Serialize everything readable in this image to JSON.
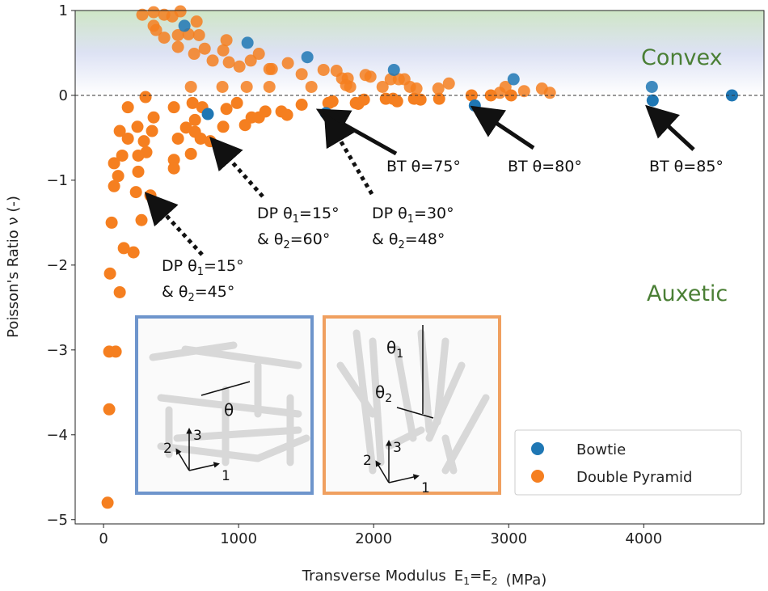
{
  "chart_data": {
    "type": "scatter",
    "title": "",
    "xlabel": "Transverse Modulus",
    "xlabel_eq": "E1=E2",
    "xlabel_unit": "(MPa)",
    "ylabel": "Poisson's Ratio ν (-)",
    "xlim": [
      -210,
      4890
    ],
    "ylim": [
      -5.05,
      1.0
    ],
    "xticks": [
      0,
      1000,
      2000,
      3000,
      4000
    ],
    "yticks": [
      1,
      0,
      -1,
      -2,
      -3,
      -4,
      -5
    ],
    "ytick_labels": [
      "1",
      "0",
      "−1",
      "−2",
      "−3",
      "−4",
      "−5"
    ],
    "grid": false,
    "zero_line": "dashed",
    "legend_position": "bottom-right",
    "regions": [
      {
        "label": "Convex",
        "y_range": [
          0,
          1
        ],
        "color": "#4a7f35"
      },
      {
        "label": "Auxetic",
        "y_range": [
          -5.05,
          0
        ],
        "color": "#4a7f35"
      }
    ],
    "series": [
      {
        "name": "Double Pyramid",
        "color": "#f57f20",
        "points": [
          [
            287,
            0.95
          ],
          [
            371,
            0.98
          ],
          [
            449,
            0.95
          ],
          [
            509,
            0.93
          ],
          [
            569,
            0.99
          ],
          [
            689,
            0.87
          ],
          [
            371,
            0.82
          ],
          [
            389,
            0.77
          ],
          [
            449,
            0.68
          ],
          [
            551,
            0.71
          ],
          [
            629,
            0.72
          ],
          [
            707,
            0.71
          ],
          [
            749,
            0.55
          ],
          [
            671,
            0.49
          ],
          [
            551,
            0.57
          ],
          [
            910,
            0.65
          ],
          [
            886,
            0.53
          ],
          [
            808,
            0.41
          ],
          [
            928,
            0.39
          ],
          [
            1006,
            0.34
          ],
          [
            1090,
            0.41
          ],
          [
            1150,
            0.49
          ],
          [
            1228,
            0.31
          ],
          [
            1246,
            0.31
          ],
          [
            1365,
            0.38
          ],
          [
            1467,
            0.25
          ],
          [
            1539,
            0.1
          ],
          [
            1629,
            0.3
          ],
          [
            1725,
            0.29
          ],
          [
            1808,
            0.2
          ],
          [
            1826,
            0.1
          ],
          [
            1976,
            0.22
          ],
          [
            2066,
            0.1
          ],
          [
            2126,
            0.19
          ],
          [
            2228,
            0.19
          ],
          [
            2317,
            0.08
          ],
          [
            2347,
            -0.05
          ],
          [
            2144,
            -0.04
          ],
          [
            1766,
            0.2
          ],
          [
            1796,
            0.12
          ],
          [
            1940,
            0.24
          ],
          [
            2186,
            0.19
          ],
          [
            2269,
            0.1
          ],
          [
            2299,
            -0.04
          ],
          [
            2090,
            -0.04
          ],
          [
            2479,
            0.08
          ],
          [
            2557,
            0.14
          ],
          [
            2485,
            -0.04
          ],
          [
            2725,
            0.0
          ],
          [
            2868,
            0.0
          ],
          [
            2934,
            0.03
          ],
          [
            2976,
            0.1
          ],
          [
            3018,
            0.0
          ],
          [
            3114,
            0.05
          ],
          [
            3246,
            0.08
          ],
          [
            3305,
            0.03
          ],
          [
            1671,
            -0.09
          ],
          [
            1868,
            -0.09
          ],
          [
            647,
            0.1
          ],
          [
            880,
            0.1
          ],
          [
            1060,
            0.1
          ],
          [
            1228,
            0.1
          ],
          [
            311,
            -0.02
          ],
          [
            180,
            -0.14
          ],
          [
            371,
            -0.26
          ],
          [
            251,
            -0.37
          ],
          [
            120,
            -0.42
          ],
          [
            180,
            -0.51
          ],
          [
            359,
            -0.42
          ],
          [
            299,
            -0.54
          ],
          [
            317,
            -0.67
          ],
          [
            257,
            -0.71
          ],
          [
            138,
            -0.71
          ],
          [
            78,
            -0.8
          ],
          [
            257,
            -0.9
          ],
          [
            108,
            -0.95
          ],
          [
            78,
            -1.07
          ],
          [
            240,
            -1.14
          ],
          [
            347,
            -1.18
          ],
          [
            60,
            -1.5
          ],
          [
            281,
            -1.47
          ],
          [
            150,
            -1.8
          ],
          [
            222,
            -1.85
          ],
          [
            48,
            -2.1
          ],
          [
            120,
            -2.32
          ],
          [
            42,
            -3.02
          ],
          [
            90,
            -3.02
          ],
          [
            42,
            -3.7
          ],
          [
            30,
            -4.8
          ],
          [
            521,
            -0.14
          ],
          [
            659,
            -0.09
          ],
          [
            731,
            -0.14
          ],
          [
            677,
            -0.29
          ],
          [
            611,
            -0.38
          ],
          [
            677,
            -0.43
          ],
          [
            719,
            -0.51
          ],
          [
            790,
            -0.54
          ],
          [
            551,
            -0.51
          ],
          [
            647,
            -0.69
          ],
          [
            521,
            -0.76
          ],
          [
            521,
            -0.86
          ],
          [
            910,
            -0.16
          ],
          [
            988,
            -0.09
          ],
          [
            886,
            -0.37
          ],
          [
            1048,
            -0.35
          ],
          [
            1096,
            -0.26
          ],
          [
            1150,
            -0.26
          ],
          [
            1198,
            -0.19
          ],
          [
            1317,
            -0.19
          ],
          [
            1359,
            -0.23
          ],
          [
            1467,
            -0.11
          ],
          [
            1665,
            -0.09
          ],
          [
            1695,
            -0.07
          ],
          [
            1886,
            -0.1
          ],
          [
            1928,
            -0.05
          ],
          [
            2174,
            -0.07
          ]
        ]
      },
      {
        "name": "Bowtie",
        "color": "#1f77b4",
        "points": [
          [
            599,
            0.82
          ],
          [
            1066,
            0.62
          ],
          [
            1509,
            0.45
          ],
          [
            2150,
            0.3
          ],
          [
            3036,
            0.19
          ],
          [
            4060,
            0.1
          ],
          [
            4066,
            -0.06
          ],
          [
            4653,
            0.0
          ],
          [
            2749,
            -0.12
          ],
          [
            1647,
            -0.21
          ],
          [
            772,
            -0.22
          ]
        ]
      }
    ],
    "legend": [
      "Bowtie",
      "Double Pyramid"
    ],
    "annotations": [
      {
        "text": "BT θ=75°",
        "style": "solid",
        "target": [
          1620,
          -0.2
        ]
      },
      {
        "text": "BT θ=80°",
        "style": "solid",
        "target": [
          2760,
          -0.17
        ]
      },
      {
        "text": "BT θ=85°",
        "style": "solid",
        "target": [
          4050,
          -0.17
        ]
      },
      {
        "text": "DP θ1=15° & θ2=60°",
        "style": "dotted",
        "target": [
          820,
          -0.55
        ]
      },
      {
        "text": "DP θ1=30° & θ2=48°",
        "style": "dotted",
        "target": [
          1660,
          -0.28
        ]
      },
      {
        "text": "DP θ1=15° & θ2=45°",
        "style": "dotted",
        "target": [
          340,
          -1.2
        ]
      }
    ],
    "insets": [
      {
        "frame_color": "#6e95cc",
        "angle_label": "θ",
        "axes": [
          "1",
          "2",
          "3"
        ]
      },
      {
        "frame_color": "#f0a060",
        "angle_labels": [
          "θ1",
          "θ2"
        ],
        "axes": [
          "1",
          "2",
          "3"
        ]
      }
    ]
  }
}
